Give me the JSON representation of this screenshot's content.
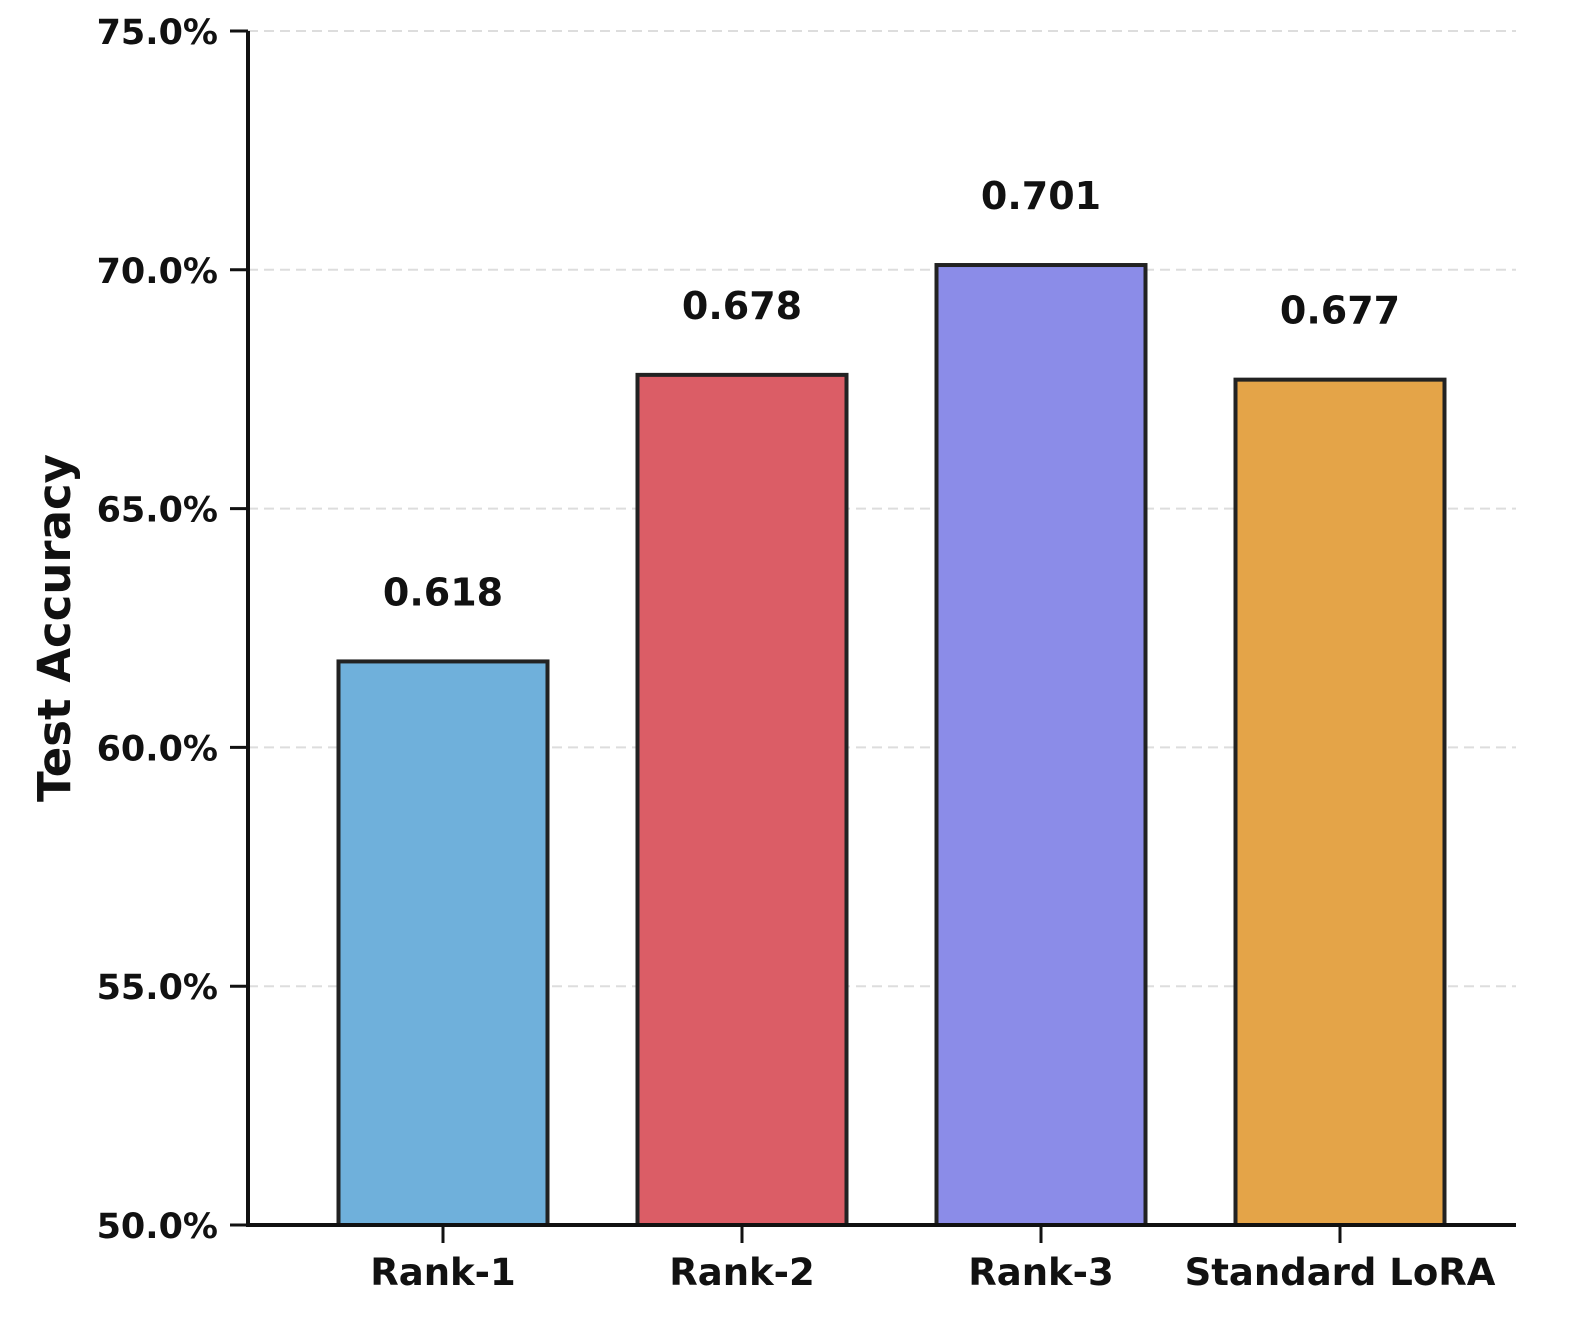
{
  "chart_data": {
    "type": "bar",
    "title": "",
    "xlabel": "",
    "ylabel": "Test Accuracy",
    "ylim": [
      0.5,
      0.75
    ],
    "yticks": [
      0.5,
      0.55,
      0.6,
      0.65,
      0.7,
      0.75
    ],
    "ytick_labels": [
      "50.0%",
      "55.0%",
      "60.0%",
      "65.0%",
      "70.0%",
      "75.0%"
    ],
    "grid": "y-dashed",
    "categories": [
      "Rank-1",
      "Rank-2",
      "Rank-3",
      "Standard LoRA"
    ],
    "values": [
      0.618,
      0.678,
      0.701,
      0.677
    ],
    "value_labels": [
      "0.618",
      "0.678",
      "0.701",
      "0.677"
    ],
    "colors": [
      "#6fb0db",
      "#db5d66",
      "#8b8ce8",
      "#e4a448"
    ]
  }
}
